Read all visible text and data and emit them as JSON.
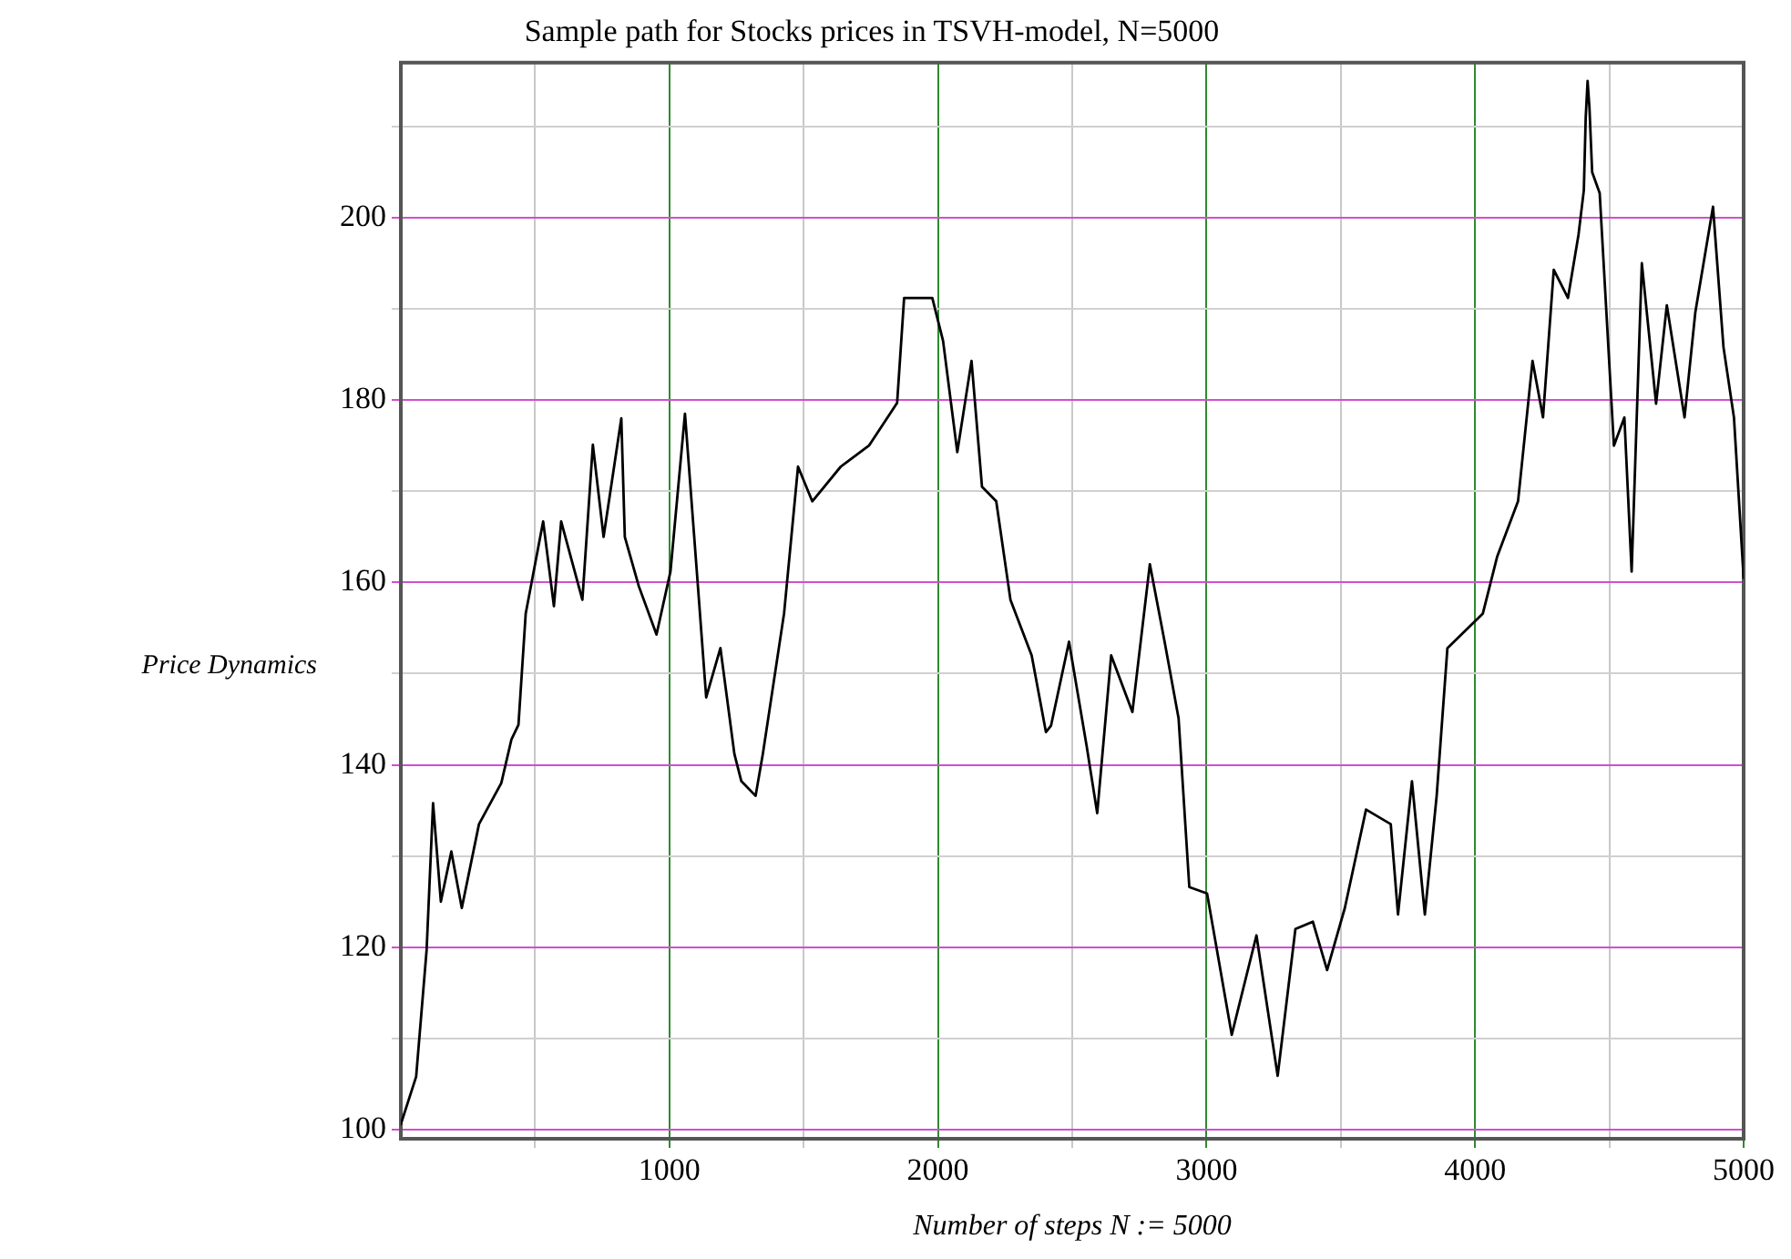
{
  "chart_data": {
    "type": "line",
    "title": "Sample path for Stocks prices in TSVH-model, N=5000",
    "xlabel": "Number of steps N := 5000",
    "ylabel": "Price Dynamics",
    "xlim": [
      0,
      5000
    ],
    "ylim": [
      99,
      217
    ],
    "xticks": [
      {
        "value": 500,
        "label": null
      },
      1000,
      {
        "value": 1500,
        "label": null
      },
      2000,
      {
        "value": 2500,
        "label": null
      },
      3000,
      {
        "value": 3500,
        "label": null
      },
      4000,
      {
        "value": 4500,
        "label": null
      },
      5000
    ],
    "yticks": [
      100,
      {
        "value": 110,
        "label": null
      },
      120,
      {
        "value": 130,
        "label": null
      },
      140,
      {
        "value": 150,
        "label": null
      },
      160,
      {
        "value": 170,
        "label": null
      },
      180,
      {
        "value": 190,
        "label": null
      },
      200,
      {
        "value": 210,
        "label": null
      }
    ],
    "grid": true,
    "legend": false,
    "marker": "none",
    "line_style": "solid",
    "series": [
      {
        "color": "#000000",
        "x": [
          0,
          57,
          96,
          120,
          149,
          188,
          227,
          291,
          374,
          412,
          438,
          465,
          530,
          570,
          597,
          676,
          715,
          755,
          821,
          834,
          886,
          952,
          1004,
          1058,
          1110,
          1137,
          1190,
          1242,
          1268,
          1321,
          1348,
          1427,
          1479,
          1532,
          1638,
          1743,
          1848,
          1874,
          1979,
          2019,
          2072,
          2125,
          2164,
          2217,
          2270,
          2349,
          2402,
          2421,
          2488,
          2554,
          2593,
          2645,
          2724,
          2789,
          2844,
          2896,
          2936,
          3002,
          3094,
          3186,
          3265,
          3331,
          3396,
          3449,
          3515,
          3594,
          3686,
          3713,
          3765,
          3813,
          3857,
          3897,
          4029,
          4082,
          4160,
          4214,
          4253,
          4293,
          4346,
          4385,
          4405,
          4412,
          4419,
          4426,
          4436,
          4464,
          4517,
          4556,
          4583,
          4621,
          4674,
          4714,
          4780,
          4820,
          4886,
          4925,
          4964,
          5000
        ],
        "values": [
          100.6,
          105.8,
          119.7,
          135.8,
          125,
          130.5,
          124.3,
          133.5,
          138,
          142.8,
          144.4,
          156.6,
          166.7,
          157.4,
          166.7,
          158.1,
          175.1,
          165,
          178,
          165,
          159.6,
          154.3,
          161.2,
          178.5,
          158.1,
          147.4,
          152.8,
          141.2,
          138.2,
          136.6,
          141.2,
          156.6,
          172.7,
          168.9,
          172.7,
          175,
          179.7,
          191.2,
          191.2,
          186.5,
          174.3,
          184.3,
          170.5,
          168.9,
          158.1,
          152,
          143.6,
          144.3,
          153.5,
          142,
          134.7,
          152,
          145.8,
          162,
          153.5,
          145.1,
          126.6,
          125.9,
          110.4,
          121.3,
          105.9,
          122,
          122.8,
          117.5,
          124.3,
          135.1,
          133.5,
          123.6,
          138.2,
          123.6,
          136.6,
          152.8,
          156.6,
          162.8,
          168.9,
          184.3,
          178.1,
          194.3,
          191.2,
          198.1,
          203,
          211,
          215,
          212,
          205,
          202.7,
          175,
          178.1,
          161.2,
          195,
          179.6,
          190.4,
          178.1,
          189.6,
          201.2,
          185.8,
          178.1,
          160.5
        ]
      }
    ]
  }
}
